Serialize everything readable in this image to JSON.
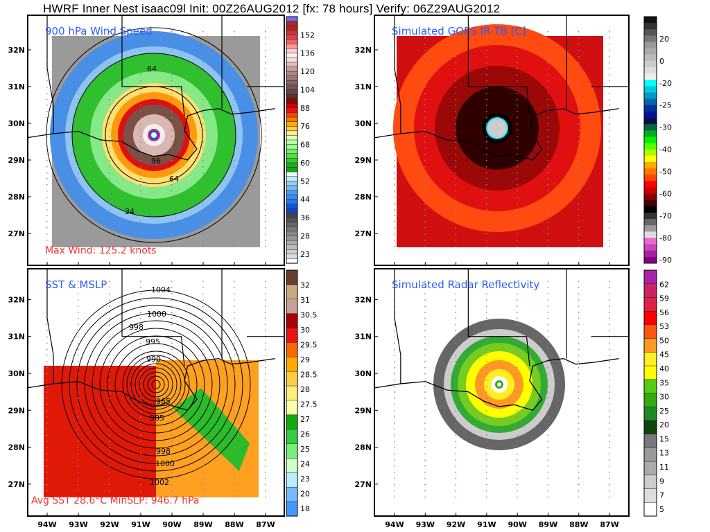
{
  "title": "HWRF Inner Nest isaac09l Init: 00Z26AUG2012 [fx: 78 hours] Verify: 06Z29AUG2012",
  "lat_labels": [
    "32N",
    "31N",
    "30N",
    "29N",
    "28N",
    "27N"
  ],
  "lon_labels": [
    "94W",
    "93W",
    "92W",
    "91W",
    "90W",
    "89W",
    "88W",
    "87W"
  ],
  "panels": [
    {
      "title": "900 hPa Wind Speed",
      "footer": "Max Wind: 125.2 knots",
      "contour_labels": [
        "64",
        "64",
        "96",
        "34"
      ],
      "colorbar": {
        "labels": [
          "152",
          "136",
          "120",
          "104",
          "88",
          "76",
          "68",
          "60",
          "52",
          "44",
          "36",
          "28",
          "23"
        ],
        "colors": [
          "#7b68ee",
          "#a52a2a",
          "#b22222",
          "#c33",
          "#d44",
          "#e66",
          "#f99",
          "#fcc",
          "#fee",
          "#edd",
          "#dbb",
          "#c99",
          "#a88",
          "#977",
          "#866",
          "#755",
          "#644",
          "#533",
          "#900",
          "#c00",
          "#e11",
          "#f40",
          "#f70",
          "#fa0",
          "#fc4",
          "#fe8",
          "#dfb",
          "#bfa",
          "#9f8",
          "#7e6",
          "#5d4",
          "#3c3",
          "#2a2",
          "#1a1",
          "#eff",
          "#bef",
          "#9cf",
          "#7be",
          "#59e",
          "#48e",
          "#27e",
          "#15d",
          "#14c",
          "#444",
          "#555",
          "#666",
          "#777",
          "#888",
          "#999",
          "#aaa",
          "#bbb",
          "#ccc",
          "#ddd",
          "#fff"
        ]
      }
    },
    {
      "title": "Simulated GOES IR TB [C]",
      "colorbar": {
        "labels": [
          "20",
          "0",
          "-20",
          "-25",
          "-30",
          "-40",
          "-50",
          "-60",
          "-70",
          "-80",
          "-90"
        ],
        "colors": [
          "#111",
          "#333",
          "#555",
          "#777",
          "#999",
          "#aaa",
          "#bbb",
          "#ccc",
          "#ddd",
          "#eee",
          "#0ff",
          "#0cd",
          "#09c",
          "#06a",
          "#039",
          "#019",
          "#014",
          "#064",
          "#0a2",
          "#0e0",
          "#5f0",
          "#af0",
          "#ff0",
          "#fa0",
          "#f70",
          "#f40",
          "#f00",
          "#c00",
          "#800",
          "#400",
          "#000",
          "#333",
          "#666",
          "#999",
          "#ddd",
          "#e6c",
          "#c4b",
          "#a29",
          "#808"
        ]
      }
    },
    {
      "title": "SST & MSLP",
      "footer": "Avg SST  28.6°C  MinSLP: 946.7 hPa",
      "contour_labels": [
        "1004",
        "1000",
        "998",
        "995",
        "990",
        "965",
        "985",
        "998",
        "1000",
        "1002"
      ],
      "colorbar": {
        "labels": [
          "32",
          "31",
          "30.5",
          "30",
          "29.5",
          "29",
          "28.5",
          "28",
          "27.5",
          "27",
          "26",
          "25",
          "24",
          "23",
          "20",
          "18"
        ],
        "colors": [
          "#6b3b2e",
          "#c8a880",
          "#c8a098",
          "#a00",
          "#e11",
          "#f60",
          "#fa0",
          "#fc4",
          "#fe7",
          "#ffa",
          "#1a1",
          "#3c4",
          "#7e7",
          "#cfc",
          "#bef",
          "#7bf",
          "#49f"
        ]
      }
    },
    {
      "title": "Simulated Radar Reflectivity",
      "colorbar": {
        "labels": [
          "62",
          "59",
          "56",
          "53",
          "50",
          "45",
          "40",
          "35",
          "30",
          "25",
          "20",
          "15",
          "13",
          "11",
          "9",
          "7",
          "5"
        ],
        "colors": [
          "#a2a",
          "#c26",
          "#d24",
          "#f00",
          "#f51",
          "#f92",
          "#fe2",
          "#ff0",
          "#5c1",
          "#3a1",
          "#282",
          "#141",
          "#777",
          "#999",
          "#aaa",
          "#ccc",
          "#ddd",
          "#fff"
        ]
      }
    }
  ]
}
